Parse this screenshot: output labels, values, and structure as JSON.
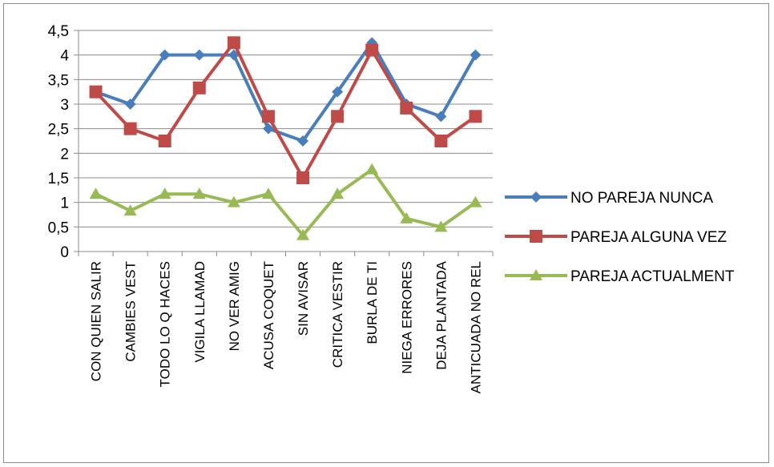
{
  "chart_data": {
    "type": "line",
    "categories": [
      "CON QUIEN SALIR",
      "CAMBIES VEST",
      "TODO LO Q HACES",
      "VIGILA LLAMAD",
      "NO VER AMIG",
      "ACUSA COQUET",
      "SIN AVISAR",
      "CRITICA VESTIR",
      "BURLA DE TI",
      "NIEGA ERRORES",
      "DEJA PLANTADA",
      "ANTICUADA NO REL"
    ],
    "yticks": [
      "0",
      "0,5",
      "1",
      "1,5",
      "2",
      "2,5",
      "3",
      "3,5",
      "4",
      "4,5"
    ],
    "ylim": [
      0,
      4.5
    ],
    "grid": true,
    "legend_position": "right",
    "series": [
      {
        "name": "NO PAREJA NUNCA",
        "color": "#4a7ebb",
        "marker": "diamond",
        "values": [
          3.25,
          3.0,
          4.0,
          4.0,
          4.0,
          2.5,
          2.25,
          3.25,
          4.25,
          3.0,
          2.75,
          4.0
        ]
      },
      {
        "name": "PAREJA ALGUNA VEZ",
        "color": "#be4b48",
        "marker": "square",
        "values": [
          3.25,
          2.5,
          2.25,
          3.33,
          4.25,
          2.75,
          1.5,
          2.75,
          4.1,
          2.92,
          2.25,
          2.75
        ]
      },
      {
        "name": "PAREJA ACTUALMENT",
        "color": "#98b954",
        "marker": "triangle",
        "values": [
          1.17,
          0.83,
          1.17,
          1.17,
          1.0,
          1.17,
          0.33,
          1.17,
          1.67,
          0.67,
          0.5,
          1.0
        ]
      }
    ]
  }
}
